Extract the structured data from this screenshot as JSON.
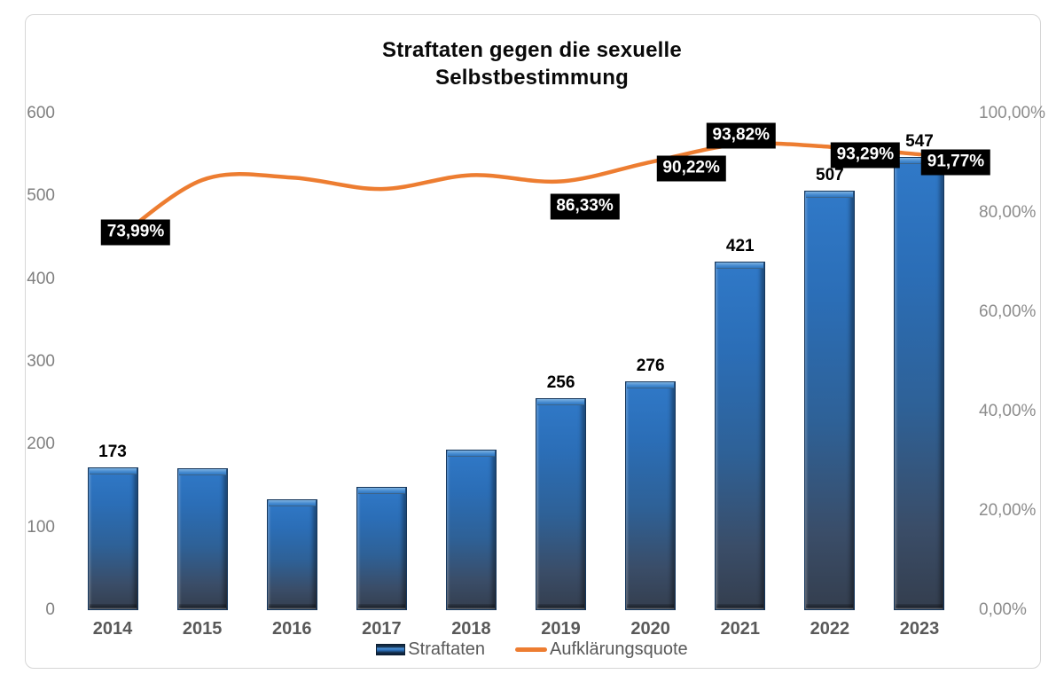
{
  "chart_data": {
    "type": "combo",
    "title": "Straftaten gegen die sexuelle Selbstbestimmung",
    "title_lines": [
      "Straftaten gegen die sexuelle",
      "Selbstbestimmung"
    ],
    "categories": [
      "2014",
      "2015",
      "2016",
      "2017",
      "2018",
      "2019",
      "2020",
      "2021",
      "2022",
      "2023"
    ],
    "series": [
      {
        "name": "Straftaten",
        "type": "bar",
        "axis": "left",
        "color": "#2a6cb4",
        "values": [
          173,
          171,
          134,
          149,
          194,
          256,
          276,
          421,
          507,
          547
        ],
        "labels": [
          "173",
          null,
          null,
          null,
          null,
          "256",
          "276",
          "421",
          "507",
          "547"
        ]
      },
      {
        "name": "Aufklärungsquote",
        "type": "line",
        "axis": "right",
        "color": "#ed7d31",
        "values": [
          73.99,
          86.6,
          87.1,
          84.8,
          87.6,
          86.33,
          90.22,
          93.82,
          93.29,
          91.77
        ],
        "labels": [
          "73,99%",
          null,
          null,
          null,
          null,
          "86,33%",
          "90,22%",
          "93,82%",
          "93,29%",
          "91,77%"
        ]
      }
    ],
    "left_axis": {
      "min": 0,
      "max": 600,
      "tick_step": 100,
      "ticks": [
        "0",
        "100",
        "200",
        "300",
        "400",
        "500",
        "600"
      ]
    },
    "right_axis": {
      "min": 0,
      "max": 100,
      "tick_step": 20,
      "ticks": [
        "0,00%",
        "20,00%",
        "40,00%",
        "60,00%",
        "80,00%",
        "100,00%"
      ]
    },
    "legend": {
      "position": "bottom",
      "entries": [
        "Straftaten",
        "Aufklärungsquote"
      ]
    },
    "style": {
      "line_label_bg": "#000000",
      "line_label_text": "#ffffff",
      "bar_label_text": "#000000",
      "grid": "off"
    }
  }
}
